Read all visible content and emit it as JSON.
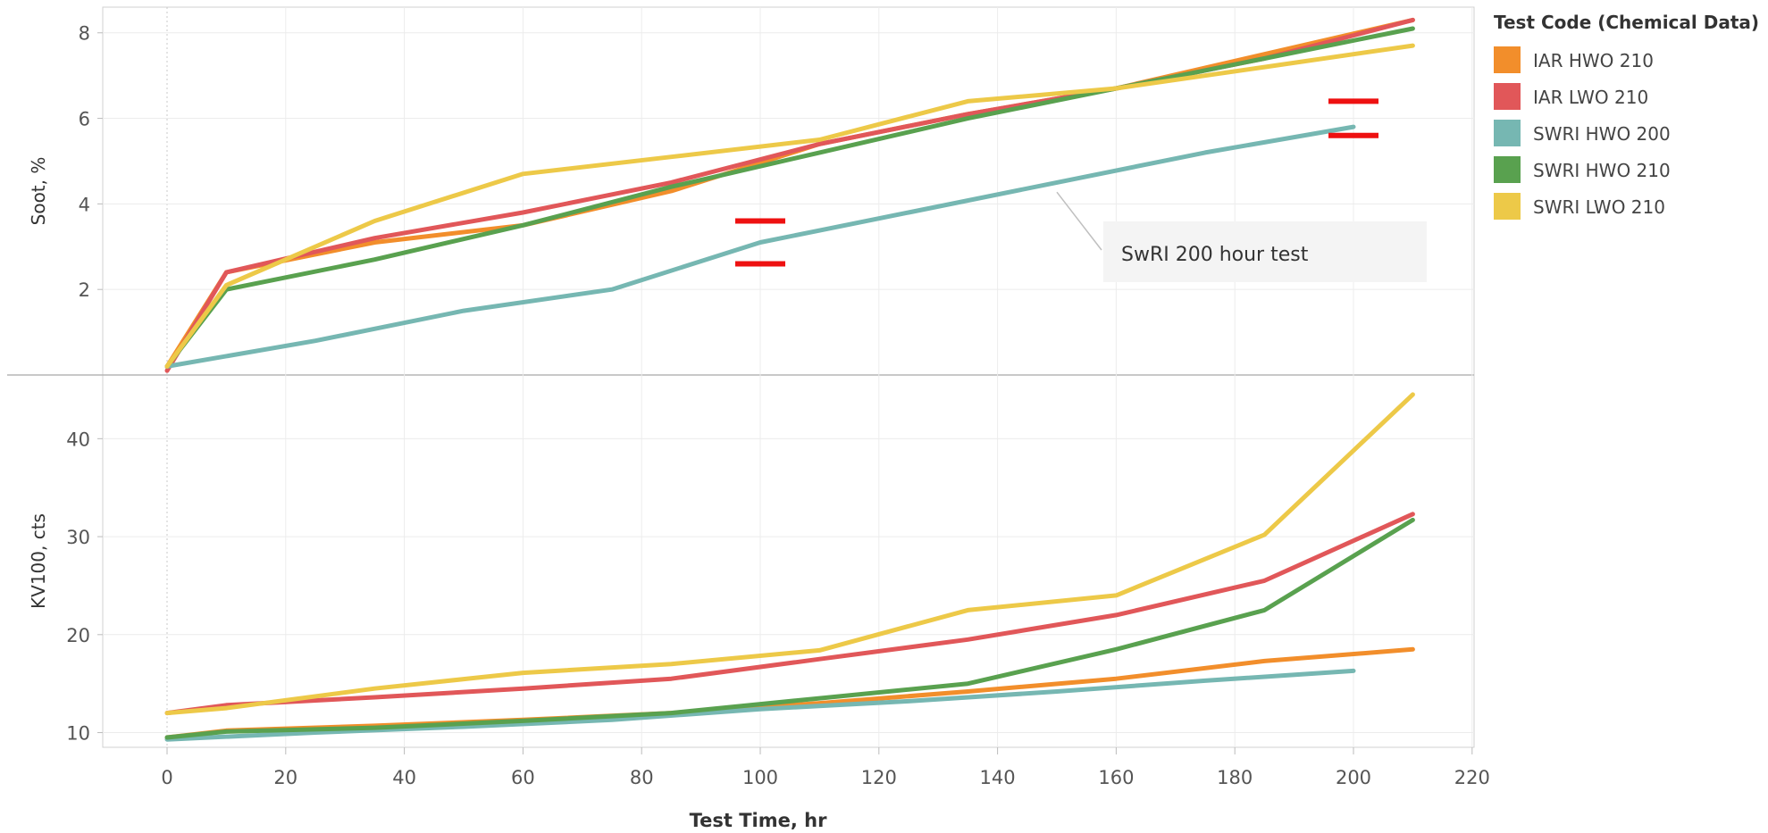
{
  "chart_data": {
    "type": "line",
    "xlabel": "Test Time, hr",
    "xlim": [
      -11,
      220
    ],
    "xticks": [
      0,
      20,
      40,
      60,
      80,
      100,
      120,
      140,
      160,
      180,
      200,
      220
    ],
    "legend": {
      "title": "Test Code (Chemical Data)",
      "placement": "right"
    },
    "colors": {
      "IAR HWO 210": "#f28e2b",
      "IAR LWO 210": "#e15759",
      "SWRI HWO 200": "#76b7b2",
      "SWRI HWO 210": "#59a14f",
      "SWRI LWO 210": "#edc948"
    },
    "panels": [
      {
        "ylabel": "Soot, %",
        "ylim": [
          0,
          8.6
        ],
        "yticks": [
          2,
          4,
          6,
          8
        ],
        "series": [
          {
            "name": "IAR HWO 210",
            "x": [
              0,
              10,
              35,
              60,
              85,
              110,
              135,
              160,
              185,
              210
            ],
            "y": [
              0.2,
              2.4,
              3.1,
              3.5,
              4.3,
              5.4,
              6.1,
              6.7,
              7.5,
              8.3
            ]
          },
          {
            "name": "IAR LWO 210",
            "x": [
              0,
              10,
              35,
              60,
              85,
              110,
              135,
              160,
              185,
              210
            ],
            "y": [
              0.1,
              2.4,
              3.2,
              3.8,
              4.5,
              5.4,
              6.1,
              6.7,
              7.4,
              8.3
            ]
          },
          {
            "name": "SWRI HWO 200",
            "x": [
              0,
              25,
              50,
              75,
              100,
              125,
              150,
              175,
              200
            ],
            "y": [
              0.2,
              0.8,
              1.5,
              2.0,
              3.1,
              3.8,
              4.5,
              5.2,
              5.8
            ]
          },
          {
            "name": "SWRI HWO 210",
            "x": [
              0,
              10,
              35,
              60,
              85,
              110,
              135,
              160,
              185,
              210
            ],
            "y": [
              0.2,
              2.0,
              2.7,
              3.5,
              4.4,
              5.2,
              6.0,
              6.7,
              7.4,
              8.1
            ]
          },
          {
            "name": "SWRI LWO 210",
            "x": [
              0,
              10,
              35,
              60,
              85,
              110,
              135,
              160,
              185,
              210
            ],
            "y": [
              0.2,
              2.1,
              3.6,
              4.7,
              5.1,
              5.5,
              6.4,
              6.7,
              7.2,
              7.7
            ]
          }
        ],
        "markers": [
          {
            "x": 100,
            "y": 3.6
          },
          {
            "x": 100,
            "y": 2.6
          },
          {
            "x": 200,
            "y": 6.4
          },
          {
            "x": 200,
            "y": 5.6
          }
        ],
        "annotation": {
          "text": "SwRI 200 hour test",
          "anchor_x": 150,
          "anchor_y": 4.4
        }
      },
      {
        "ylabel": "KV100, cts",
        "ylim": [
          8.5,
          46.5
        ],
        "yticks": [
          10,
          20,
          30,
          40
        ],
        "series": [
          {
            "name": "IAR HWO 210",
            "x": [
              0,
              10,
              35,
              60,
              85,
              110,
              135,
              160,
              185,
              210
            ],
            "y": [
              9.5,
              10.2,
              10.7,
              11.3,
              12.0,
              13.0,
              14.2,
              15.5,
              17.3,
              18.5
            ]
          },
          {
            "name": "IAR LWO 210",
            "x": [
              0,
              10,
              35,
              60,
              85,
              110,
              135,
              160,
              185,
              210
            ],
            "y": [
              12.0,
              12.8,
              13.6,
              14.5,
              15.5,
              17.5,
              19.5,
              22.0,
              25.5,
              32.3
            ]
          },
          {
            "name": "SWRI HWO 200",
            "x": [
              0,
              25,
              50,
              75,
              100,
              125,
              150,
              175,
              200
            ],
            "y": [
              9.3,
              10.0,
              10.6,
              11.3,
              12.4,
              13.2,
              14.2,
              15.3,
              16.3
            ]
          },
          {
            "name": "SWRI HWO 210",
            "x": [
              0,
              10,
              35,
              60,
              85,
              110,
              135,
              160,
              185,
              210
            ],
            "y": [
              9.5,
              10.1,
              10.5,
              11.2,
              12.0,
              13.5,
              15.0,
              18.5,
              22.5,
              31.7
            ]
          },
          {
            "name": "SWRI LWO 210",
            "x": [
              0,
              10,
              35,
              60,
              85,
              110,
              135,
              160,
              185,
              210
            ],
            "y": [
              12.0,
              12.5,
              14.5,
              16.1,
              17.0,
              18.4,
              22.5,
              24.0,
              30.2,
              44.5
            ]
          }
        ]
      }
    ]
  }
}
